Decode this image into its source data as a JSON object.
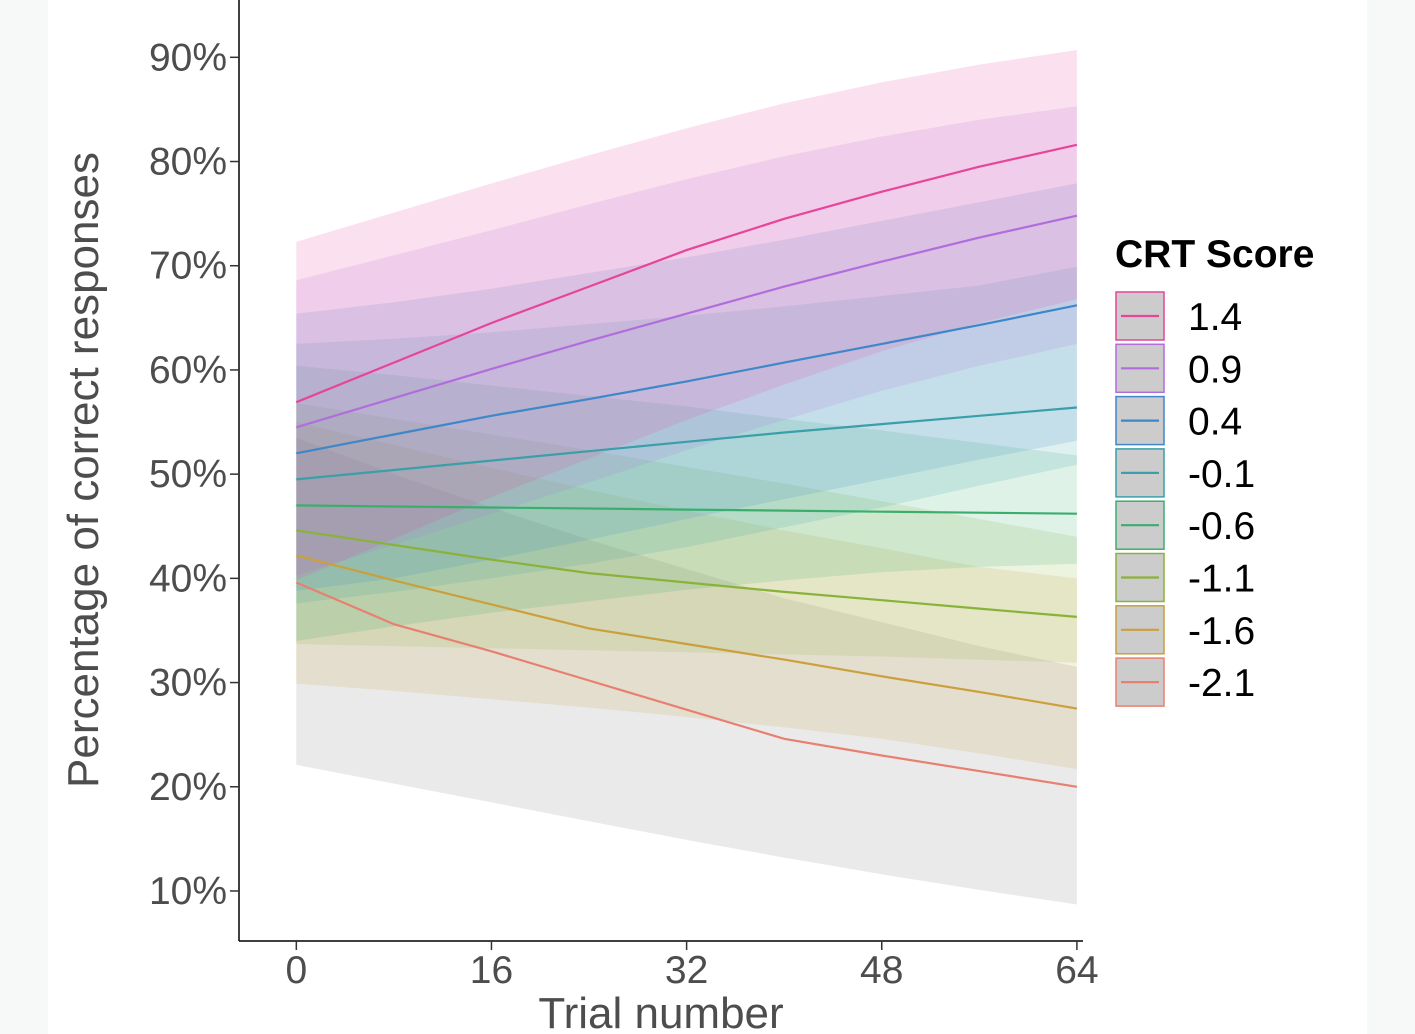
{
  "chart_data": {
    "type": "line",
    "xlabel": "Trial number",
    "ylabel": "Percentage of correct responses",
    "xlim": [
      -4.7,
      64.5
    ],
    "ylim": [
      5.2,
      95.5
    ],
    "x_ticks": [
      0,
      16,
      32,
      48,
      64
    ],
    "y_ticks": [
      10,
      20,
      30,
      40,
      50,
      60,
      70,
      80,
      90
    ],
    "y_tick_labels": [
      "10%",
      "20%",
      "30%",
      "40%",
      "50%",
      "60%",
      "70%",
      "80%",
      "90%"
    ],
    "grid": false,
    "legend": {
      "title": "CRT Score",
      "placement": "right"
    },
    "x": [
      0,
      8,
      16,
      24,
      32,
      40,
      48,
      56,
      64
    ],
    "series": [
      {
        "name": "1.4",
        "color": "#E7449C",
        "values": [
          56.9,
          60.7,
          64.5,
          68.0,
          71.5,
          74.5,
          77.1,
          79.5,
          81.6
        ],
        "upper": [
          72.3,
          75.1,
          77.9,
          80.6,
          83.2,
          85.6,
          87.6,
          89.3,
          90.7
        ],
        "lower": [
          39.8,
          43.8,
          47.8,
          51.5,
          55.2,
          58.6,
          61.8,
          64.5,
          66.8
        ]
      },
      {
        "name": "0.9",
        "color": "#B06DDB",
        "values": [
          54.5,
          57.3,
          60.1,
          62.8,
          65.4,
          68.0,
          70.4,
          72.7,
          74.8
        ],
        "upper": [
          68.6,
          71.0,
          73.4,
          75.9,
          78.3,
          80.5,
          82.4,
          84.0,
          85.3
        ],
        "lower": [
          40.3,
          43.2,
          46.2,
          49.2,
          52.3,
          55.2,
          58.0,
          60.4,
          62.5
        ]
      },
      {
        "name": "0.4",
        "color": "#3E87C8",
        "values": [
          52.0,
          53.8,
          55.6,
          57.2,
          58.9,
          60.7,
          62.5,
          64.3,
          66.2
        ],
        "upper": [
          65.4,
          66.5,
          67.8,
          69.3,
          70.8,
          72.5,
          74.3,
          76.1,
          77.9
        ],
        "lower": [
          38.8,
          40.0,
          41.8,
          43.7,
          45.7,
          47.6,
          49.5,
          51.4,
          53.2
        ]
      },
      {
        "name": "-0.1",
        "color": "#3A9FA8",
        "values": [
          49.5,
          50.4,
          51.3,
          52.2,
          53.1,
          54.0,
          54.8,
          55.6,
          56.4
        ],
        "upper": [
          62.5,
          63.0,
          63.6,
          64.4,
          65.2,
          66.1,
          67.1,
          68.1,
          69.9
        ],
        "lower": [
          37.6,
          38.7,
          40.0,
          41.4,
          43.0,
          44.9,
          46.8,
          48.9,
          50.9
        ]
      },
      {
        "name": "-0.6",
        "color": "#3BAE6E",
        "values": [
          47.0,
          46.9,
          46.8,
          46.7,
          46.6,
          46.5,
          46.4,
          46.3,
          46.2
        ],
        "upper": [
          60.4,
          59.5,
          58.5,
          57.5,
          56.5,
          55.3,
          54.2,
          53.0,
          51.8
        ],
        "lower": [
          34.0,
          35.4,
          36.7,
          37.8,
          38.9,
          39.8,
          40.6,
          41.1,
          41.4
        ]
      },
      {
        "name": "-1.1",
        "color": "#8AB23A",
        "values": [
          44.6,
          43.2,
          41.8,
          40.5,
          39.6,
          38.7,
          37.9,
          37.1,
          36.3
        ],
        "upper": [
          56.8,
          55.3,
          53.8,
          52.3,
          50.7,
          49.1,
          47.4,
          45.7,
          44.0
        ],
        "lower": [
          33.7,
          33.5,
          33.3,
          33.1,
          32.9,
          32.7,
          32.5,
          32.2,
          31.9
        ]
      },
      {
        "name": "-1.6",
        "color": "#C9A03C",
        "values": [
          42.2,
          39.8,
          37.5,
          35.2,
          33.7,
          32.2,
          30.6,
          29.1,
          27.5
        ],
        "upper": [
          55.0,
          52.8,
          50.6,
          48.5,
          46.5,
          44.6,
          42.9,
          41.1,
          40.0
        ],
        "lower": [
          29.9,
          29.2,
          28.4,
          27.6,
          26.7,
          25.7,
          24.6,
          23.2,
          21.7
        ]
      },
      {
        "name": "-2.1",
        "color": "#E88072",
        "values": [
          39.6,
          35.6,
          33.0,
          30.2,
          27.4,
          24.6,
          23.0,
          21.5,
          20.0
        ],
        "upper": [
          53.5,
          50.0,
          46.8,
          43.7,
          40.9,
          38.1,
          35.8,
          33.5,
          31.5
        ],
        "lower": [
          22.1,
          20.3,
          18.5,
          16.7,
          14.9,
          13.2,
          11.6,
          10.1,
          8.7
        ]
      }
    ]
  }
}
